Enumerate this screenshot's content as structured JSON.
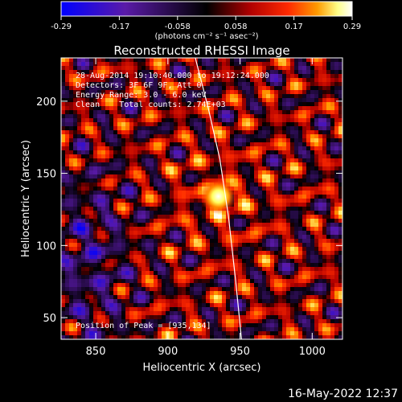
{
  "colorbar": {
    "min": -0.29,
    "max": 0.29,
    "ticks": [
      "-0.29",
      "-0.17",
      "-0.058",
      "0.058",
      "0.17",
      "0.29"
    ],
    "unit_label": "(photons cm⁻² s⁻¹ asec⁻²)",
    "colormap": [
      "#0000ff",
      "#5a1aa8",
      "#000000",
      "#b00000",
      "#ff2a00",
      "#ff9a00",
      "#ffff88",
      "#ffffff"
    ]
  },
  "chart_data": {
    "type": "heatmap",
    "title": "Reconstructed RHESSI Image",
    "xlabel": "Heliocentric X (arcsec)",
    "ylabel": "Heliocentric Y (arcsec)",
    "xlim": [
      826,
      1021
    ],
    "ylim": [
      35,
      230
    ],
    "xticks": [
      850,
      900,
      950,
      1000
    ],
    "yticks": [
      50,
      100,
      150,
      200
    ],
    "peak": {
      "x": 935,
      "y": 134
    },
    "limb_curve": {
      "x": [
        919,
        928,
        936,
        942,
        947,
        951
      ],
      "y": [
        230,
        195,
        160,
        120,
        75,
        35
      ]
    },
    "annotations": [
      "28-Aug-2014 19:10:40.000 to 19:12:24.000",
      "Detectors: 3F 6F 9F, Att 0",
      "Energy Range: 3.0 - 6.0 keV",
      "Clean    Total counts: 2.74E+03"
    ],
    "peak_label": "Position of Peak = [935,134]"
  },
  "timestamp": "16-May-2022 12:37"
}
